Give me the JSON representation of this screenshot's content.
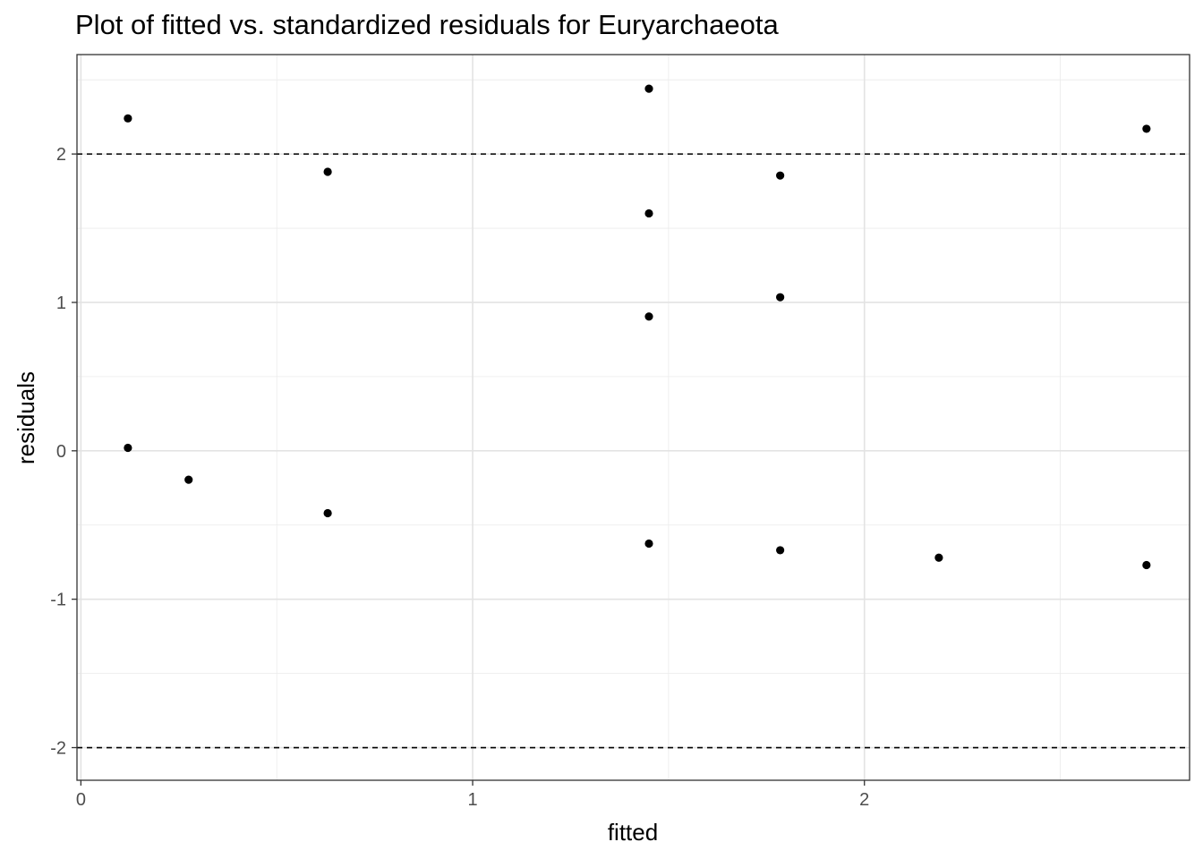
{
  "chart_data": {
    "type": "scatter",
    "title": "Plot of fitted vs. standardized residuals for Euryarchaeota",
    "xlabel": "fitted",
    "ylabel": "residuals",
    "xlim": [
      -0.01,
      2.83
    ],
    "ylim": [
      -2.22,
      2.67
    ],
    "x_ticks": [
      0,
      1,
      2
    ],
    "x_tick_labels": [
      "0",
      "1",
      "2"
    ],
    "y_ticks": [
      -2,
      -1,
      0,
      1,
      2
    ],
    "y_tick_labels": [
      "-2",
      "-1",
      "0",
      "1",
      "2"
    ],
    "grid": true,
    "reference_lines": [
      2,
      -2
    ],
    "reference_line_style": "dashed",
    "point_color": "#000000",
    "points": [
      {
        "x": 0.12,
        "y": 2.24
      },
      {
        "x": 0.12,
        "y": 0.02
      },
      {
        "x": 0.275,
        "y": -0.195
      },
      {
        "x": 0.63,
        "y": 1.88
      },
      {
        "x": 0.63,
        "y": -0.42
      },
      {
        "x": 1.45,
        "y": 2.44
      },
      {
        "x": 1.45,
        "y": 1.6
      },
      {
        "x": 1.45,
        "y": 0.905
      },
      {
        "x": 1.45,
        "y": -0.625
      },
      {
        "x": 1.785,
        "y": 1.855
      },
      {
        "x": 1.785,
        "y": 1.035
      },
      {
        "x": 1.785,
        "y": -0.67
      },
      {
        "x": 2.19,
        "y": -0.72
      },
      {
        "x": 2.72,
        "y": 2.17
      },
      {
        "x": 2.72,
        "y": -0.77
      }
    ]
  }
}
